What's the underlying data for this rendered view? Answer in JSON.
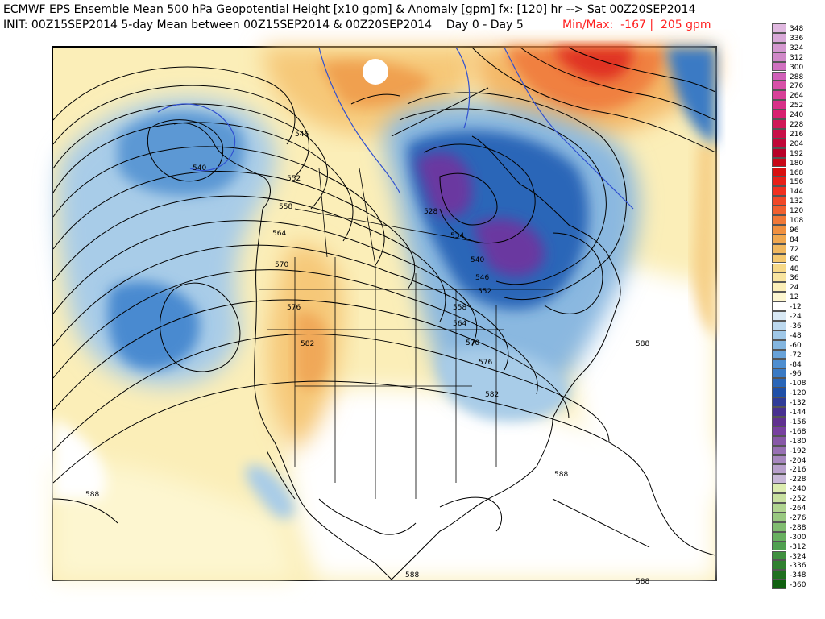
{
  "header": {
    "line1": "ECMWF EPS Ensemble Mean 500 hPa Geopotential Height [x10 gpm] & Anomaly [gpm] fx: [120] hr --> Sat 00Z20SEP2014",
    "line2": "INIT: 00Z15SEP2014 5-day Mean between 00Z15SEP2014 & 00Z20SEP2014    Day 0 - Day 5",
    "minmax": "Min/Max:  -167 |  205 gpm"
  },
  "map": {
    "contour_labels": [
      {
        "id": "c540",
        "text": "540"
      },
      {
        "id": "c546",
        "text": "546"
      },
      {
        "id": "c552",
        "text": "552"
      },
      {
        "id": "c558",
        "text": "558"
      },
      {
        "id": "c564",
        "text": "564"
      },
      {
        "id": "c570",
        "text": "570"
      },
      {
        "id": "c576",
        "text": "576"
      },
      {
        "id": "c582",
        "text": "582"
      },
      {
        "id": "c528",
        "text": "528"
      },
      {
        "id": "c534",
        "text": "534"
      },
      {
        "id": "c540e",
        "text": "540"
      },
      {
        "id": "c546e",
        "text": "546"
      },
      {
        "id": "c552e",
        "text": "552"
      },
      {
        "id": "c558e",
        "text": "558"
      },
      {
        "id": "c564e",
        "text": "564"
      },
      {
        "id": "c570e",
        "text": "570"
      },
      {
        "id": "c576e",
        "text": "576"
      },
      {
        "id": "c582e",
        "text": "582"
      },
      {
        "id": "c588a",
        "text": "588"
      },
      {
        "id": "c588b",
        "text": "588"
      },
      {
        "id": "c588c",
        "text": "588"
      },
      {
        "id": "c588d",
        "text": "588"
      },
      {
        "id": "c588e",
        "text": "588"
      }
    ]
  },
  "colorbar": {
    "levels": [
      {
        "label": "348",
        "color": "#e0b8e0"
      },
      {
        "label": "336",
        "color": "#d8a8d8"
      },
      {
        "label": "324",
        "color": "#d498d0"
      },
      {
        "label": "312",
        "color": "#d088c8"
      },
      {
        "label": "300",
        "color": "#d070c0"
      },
      {
        "label": "288",
        "color": "#d060b8"
      },
      {
        "label": "276",
        "color": "#d850a8"
      },
      {
        "label": "264",
        "color": "#d84098"
      },
      {
        "label": "252",
        "color": "#d83088"
      },
      {
        "label": "240",
        "color": "#d82070"
      },
      {
        "label": "228",
        "color": "#d01858"
      },
      {
        "label": "216",
        "color": "#c81048"
      },
      {
        "label": "204",
        "color": "#c00838"
      },
      {
        "label": "192",
        "color": "#b80028"
      },
      {
        "label": "180",
        "color": "#c80818"
      },
      {
        "label": "168",
        "color": "#d81010"
      },
      {
        "label": "156",
        "color": "#e82018"
      },
      {
        "label": "144",
        "color": "#f03020"
      },
      {
        "label": "132",
        "color": "#f04828"
      },
      {
        "label": "120",
        "color": "#f06030"
      },
      {
        "label": "108",
        "color": "#f07838"
      },
      {
        "label": "96",
        "color": "#f09040"
      },
      {
        "label": "84",
        "color": "#f0a850"
      },
      {
        "label": "72",
        "color": "#f0b860"
      },
      {
        "label": "60",
        "color": "#f4c870"
      },
      {
        "label": "48",
        "color": "#f6d888"
      },
      {
        "label": "36",
        "color": "#f8e4a0"
      },
      {
        "label": "24",
        "color": "#fbeeb8"
      },
      {
        "label": "12",
        "color": "#fdf6d0"
      },
      {
        "label": "-12",
        "color": "#ffffff"
      },
      {
        "label": "-24",
        "color": "#d8e8f4"
      },
      {
        "label": "-36",
        "color": "#bcd8ee"
      },
      {
        "label": "-48",
        "color": "#a0c8e8"
      },
      {
        "label": "-60",
        "color": "#84b6e0"
      },
      {
        "label": "-72",
        "color": "#68a2d8"
      },
      {
        "label": "-84",
        "color": "#4e8ed0"
      },
      {
        "label": "-96",
        "color": "#3a7ac4"
      },
      {
        "label": "-108",
        "color": "#2a66b8"
      },
      {
        "label": "-120",
        "color": "#2050a8"
      },
      {
        "label": "-132",
        "color": "#303c98"
      },
      {
        "label": "-144",
        "color": "#483090"
      },
      {
        "label": "-156",
        "color": "#603090"
      },
      {
        "label": "-168",
        "color": "#7840a0"
      },
      {
        "label": "-180",
        "color": "#8858a8"
      },
      {
        "label": "-192",
        "color": "#9870b4"
      },
      {
        "label": "-204",
        "color": "#a888c0"
      },
      {
        "label": "-216",
        "color": "#b8a0cc"
      },
      {
        "label": "-228",
        "color": "#c8b8d8"
      },
      {
        "label": "-240",
        "color": "#dcecb0"
      },
      {
        "label": "-252",
        "color": "#c8e0a0"
      },
      {
        "label": "-264",
        "color": "#b0d490"
      },
      {
        "label": "-276",
        "color": "#98c880"
      },
      {
        "label": "-288",
        "color": "#80bc70"
      },
      {
        "label": "-300",
        "color": "#68b060"
      },
      {
        "label": "-312",
        "color": "#50a050"
      },
      {
        "label": "-324",
        "color": "#409040"
      },
      {
        "label": "-336",
        "color": "#308030"
      },
      {
        "label": "-348",
        "color": "#207020"
      },
      {
        "label": "-360",
        "color": "#106010"
      }
    ]
  }
}
